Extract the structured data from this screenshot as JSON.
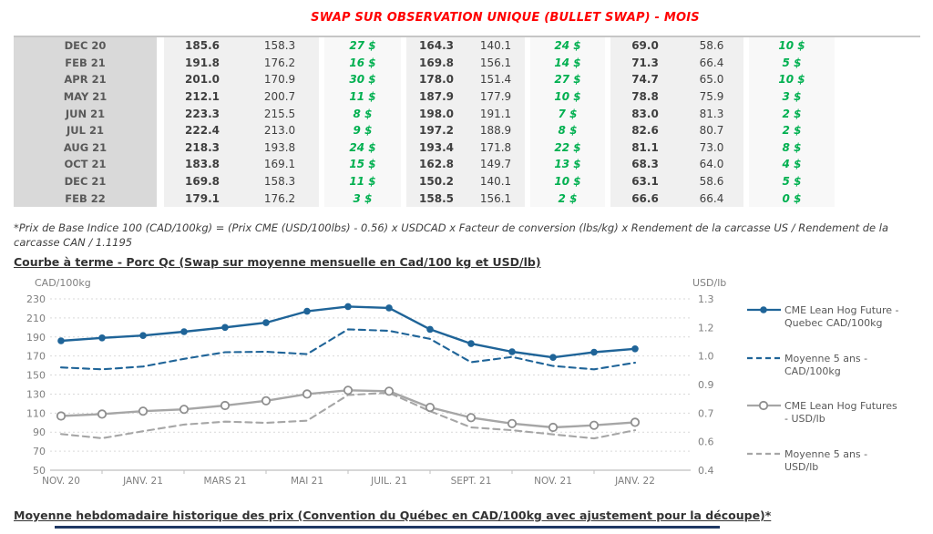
{
  "title": "SWAP SUR OBSERVATION UNIQUE (BULLET SWAP) - MOIS",
  "colors": {
    "title_red": "#ff0000",
    "diff_green": "#00b050",
    "series_blue": "#1f6498",
    "series_gray": "#a6a6a6",
    "month_cell_bg": "#d9d9d9",
    "band_bg": "#f0f0f0",
    "axis_text": "#7f7f7f",
    "gridline": "#d9d9d9",
    "bottom_rule_navy": "#1f3864"
  },
  "table": {
    "rows": [
      {
        "month": "DEC 20",
        "values": [
          "185.6",
          "158.3",
          "27 $",
          "164.3",
          "140.1",
          "24 $",
          "69.0",
          "58.6",
          "10 $"
        ]
      },
      {
        "month": "FEB 21",
        "values": [
          "191.8",
          "176.2",
          "16 $",
          "169.8",
          "156.1",
          "14 $",
          "71.3",
          "66.4",
          "5 $"
        ]
      },
      {
        "month": "APR 21",
        "values": [
          "201.0",
          "170.9",
          "30 $",
          "178.0",
          "151.4",
          "27 $",
          "74.7",
          "65.0",
          "10 $"
        ]
      },
      {
        "month": "MAY 21",
        "values": [
          "212.1",
          "200.7",
          "11 $",
          "187.9",
          "177.9",
          "10 $",
          "78.8",
          "75.9",
          "3 $"
        ]
      },
      {
        "month": "JUN 21",
        "values": [
          "223.3",
          "215.5",
          "8 $",
          "198.0",
          "191.1",
          "7 $",
          "83.0",
          "81.3",
          "2 $"
        ]
      },
      {
        "month": "JUL 21",
        "values": [
          "222.4",
          "213.0",
          "9 $",
          "197.2",
          "188.9",
          "8 $",
          "82.6",
          "80.7",
          "2 $"
        ]
      },
      {
        "month": "AUG 21",
        "values": [
          "218.3",
          "193.8",
          "24 $",
          "193.4",
          "171.8",
          "22 $",
          "81.1",
          "73.0",
          "8 $"
        ]
      },
      {
        "month": "OCT 21",
        "values": [
          "183.8",
          "169.1",
          "15 $",
          "162.8",
          "149.7",
          "13 $",
          "68.3",
          "64.0",
          "4 $"
        ]
      },
      {
        "month": "DEC 21",
        "values": [
          "169.8",
          "158.3",
          "11 $",
          "150.2",
          "140.1",
          "10 $",
          "63.1",
          "58.6",
          "5 $"
        ]
      },
      {
        "month": "FEB 22",
        "values": [
          "179.1",
          "176.2",
          "3 $",
          "158.5",
          "156.1",
          "2 $",
          "66.6",
          "66.4",
          "0 $"
        ]
      }
    ]
  },
  "footnote": "*Prix de Base Indice 100 (CAD/100kg) = (Prix CME (USD/100lbs) - 0.56) x USDCAD x Facteur de conversion (lbs/kg) x Rendement de la carcasse US / Rendement de la carcasse CAN / 1.1195",
  "chart_heading": "Courbe à terme - Porc Qc (Swap sur moyenne mensuelle en Cad/100 kg et USD/lb)",
  "bottom_heading": "Moyenne hebdomadaire historique des prix (Convention du Québec en CAD/100kg avec ajustement pour la découpe)*",
  "chart_data": {
    "type": "line",
    "n_points": 15,
    "x_tick_positions": [
      0,
      2,
      4,
      6,
      8,
      10,
      12,
      14
    ],
    "x_tick_labels": [
      "NOV. 20",
      "JANV. 21",
      "MARS 21",
      "MAI 21",
      "JUIL. 21",
      "SEPT. 21",
      "NOV. 21",
      "JANV. 22"
    ],
    "left_axis": {
      "title": "CAD/100kg",
      "min": 50,
      "max": 230,
      "ticks": [
        230,
        210,
        190,
        170,
        150,
        130,
        110,
        90,
        70,
        50
      ]
    },
    "right_axis": {
      "title": "USD/lb",
      "min": 0.4,
      "max": 1.3,
      "tick_labels": [
        "1.3",
        "1.2",
        "1.0",
        "0.9",
        "0.7",
        "0.6",
        "0.4"
      ]
    },
    "grid": "horizontal-dashed",
    "legend_position": "right",
    "series": [
      {
        "name": "CME Lean Hog Future - Quebec CAD/100kg",
        "axis": "left",
        "line": "solid",
        "marker": "filled",
        "color": "#1f6498",
        "values": [
          186,
          189,
          191.5,
          195.5,
          200,
          205,
          217,
          222,
          220.5,
          198,
          183,
          174.5,
          168.5,
          174,
          177.5
        ]
      },
      {
        "name": "Moyenne 5 ans - CAD/100kg",
        "axis": "left",
        "line": "dashed",
        "marker": "none",
        "color": "#1f6498",
        "values": [
          158,
          156,
          159,
          167,
          174,
          174.5,
          172,
          198,
          196.5,
          188,
          163.5,
          169,
          159.5,
          156,
          163
        ]
      },
      {
        "name": "CME Lean Hog Futures - USD/lb",
        "axis": "right",
        "line": "solid",
        "marker": "open",
        "color": "#a6a6a6",
        "values": [
          0.685,
          0.695,
          0.71,
          0.72,
          0.74,
          0.765,
          0.8,
          0.82,
          0.815,
          0.73,
          0.676,
          0.645,
          0.625,
          0.636,
          0.652
        ]
      },
      {
        "name": "Moyenne 5 ans - USD/lb",
        "axis": "right",
        "line": "dashed",
        "marker": "none",
        "color": "#a6a6a6",
        "values": [
          0.59,
          0.568,
          0.605,
          0.64,
          0.655,
          0.649,
          0.66,
          0.795,
          0.807,
          0.71,
          0.625,
          0.61,
          0.588,
          0.567,
          0.61
        ]
      }
    ],
    "legend": [
      {
        "line1": "CME Lean Hog Future -",
        "line2": "Quebec CAD/100kg",
        "style": "solid-dot",
        "color": "#1f6498"
      },
      {
        "line1": "Moyenne 5 ans -",
        "line2": "CAD/100kg",
        "style": "dashed",
        "color": "#1f6498"
      },
      {
        "line1": "CME Lean Hog Futures",
        "line2": "- USD/lb",
        "style": "solid-circle",
        "color": "#a6a6a6"
      },
      {
        "line1": "Moyenne 5 ans -",
        "line2": "USD/lb",
        "style": "dashed",
        "color": "#a6a6a6"
      }
    ]
  }
}
